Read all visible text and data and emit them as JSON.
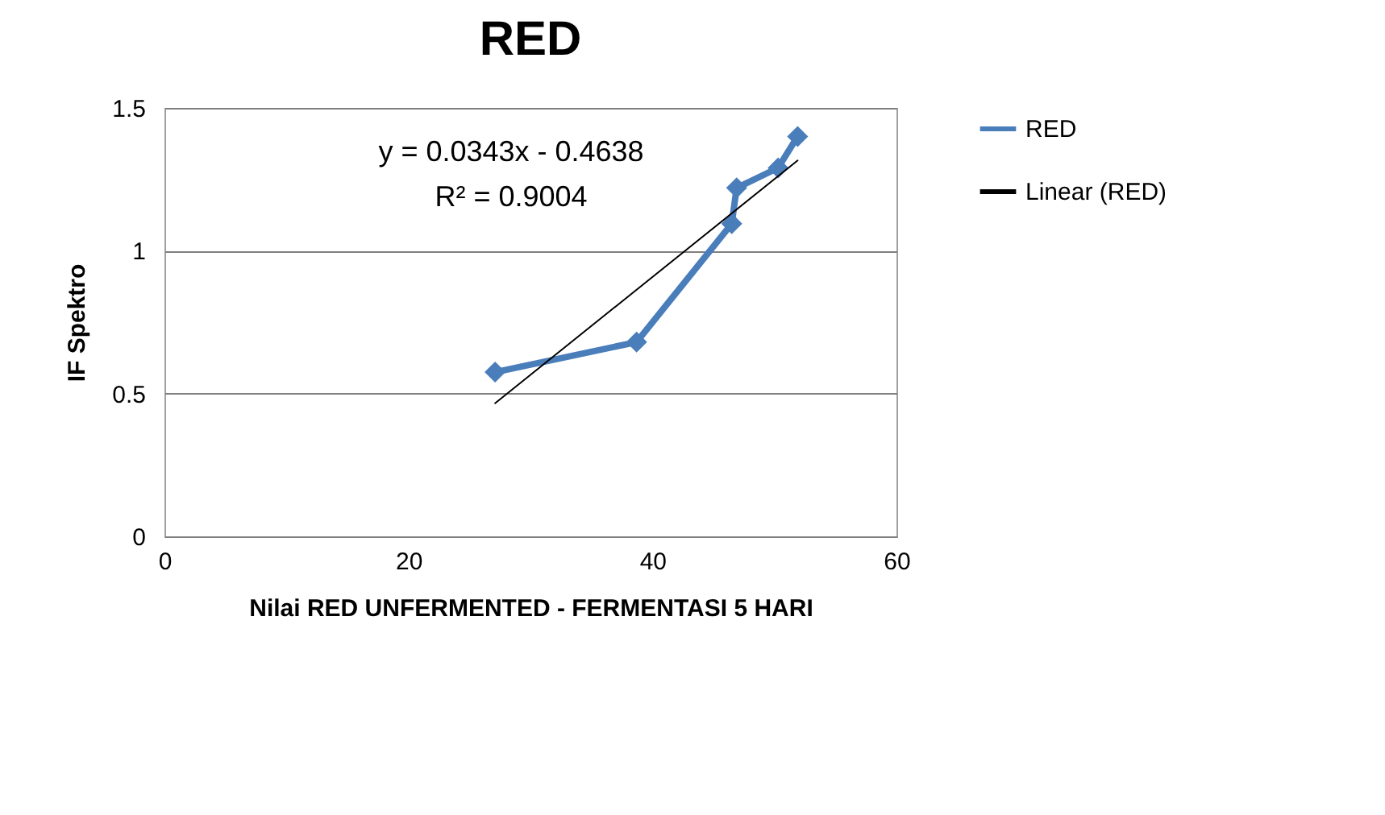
{
  "chart_data": {
    "type": "line",
    "title": "RED",
    "xlabel": "Nilai RED UNFERMENTED -  FERMENTASI 5 HARI",
    "ylabel": "IF Spektro",
    "xlim": [
      0,
      60
    ],
    "xticks": [
      0,
      20,
      40,
      60
    ],
    "ylim": [
      0,
      1.5
    ],
    "yticks": [
      0,
      0.5,
      1,
      1.5
    ],
    "grid": "y",
    "legend": "right",
    "marker": "diamond",
    "annotations": [
      "y = 0.0343x - 0.4638",
      "R² = 0.9004"
    ],
    "series": [
      {
        "name": "RED",
        "color": "#4a7ebb",
        "x": [
          27.1,
          38.7,
          46.5,
          46.9,
          50.3,
          51.9
        ],
        "values": [
          0.575,
          0.68,
          1.095,
          1.22,
          1.29,
          1.4
        ]
      },
      {
        "name": "Linear (RED)",
        "type": "line",
        "marker": "none",
        "color": "#000000",
        "x": [
          27.1,
          51.9
        ],
        "values": [
          0.466,
          1.316
        ]
      }
    ]
  }
}
